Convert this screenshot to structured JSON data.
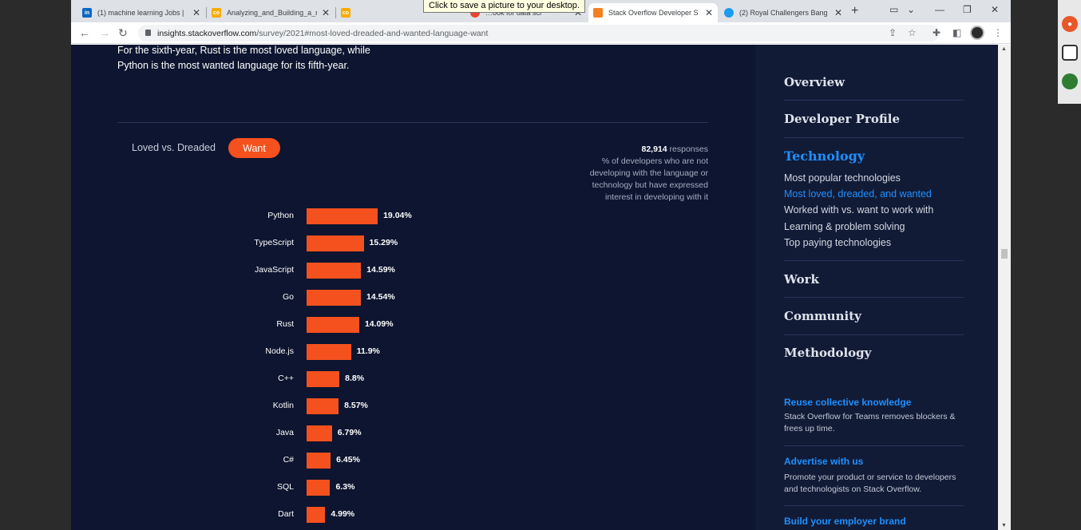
{
  "browser": {
    "tabs": [
      {
        "title": "(1) machine learning Jobs |",
        "icon": "linkedin-icon",
        "color": "#0a66c2"
      },
      {
        "title": "Analyzing_and_Building_a_r",
        "icon": "colab-icon",
        "color": "#f9ab00"
      },
      {
        "title": "",
        "icon": "colab-icon",
        "color": "#f9ab00"
      },
      {
        "title": "…ook for data sci",
        "icon": "google-icon",
        "color": "#ea4335"
      },
      {
        "title": "Stack Overflow Developer S",
        "icon": "stackoverflow-icon",
        "color": "#f48024"
      },
      {
        "title": "(2) Royal Challengers Bang",
        "icon": "twitter-icon",
        "color": "#1d9bf0"
      }
    ],
    "tooltip": "Click to save a picture to your desktop.",
    "url_host": "insights.stackoverflow.com",
    "url_path": "/survey/2021#most-loved-dreaded-and-wanted-language-want"
  },
  "intro": {
    "line1": "For the sixth-year, Rust is the most loved language, while",
    "line2": "Python is the most wanted language for its fifth-year."
  },
  "toggle": {
    "loved_label": "Loved vs. Dreaded",
    "want_label": "Want"
  },
  "note": {
    "count": "82,914",
    "count_suffix": " responses",
    "desc": "% of developers who are not developing with the language or technology but have expressed interest in developing with it"
  },
  "chart_data": {
    "type": "bar",
    "orientation": "horizontal",
    "categories": [
      "Python",
      "TypeScript",
      "JavaScript",
      "Go",
      "Rust",
      "Node.js",
      "C++",
      "Kotlin",
      "Java",
      "C#",
      "SQL",
      "Dart"
    ],
    "values": [
      19.04,
      15.29,
      14.59,
      14.54,
      14.09,
      11.9,
      8.8,
      8.57,
      6.79,
      6.45,
      6.3,
      4.99
    ],
    "value_labels": [
      "19.04%",
      "15.29%",
      "14.59%",
      "14.54%",
      "14.09%",
      "11.9%",
      "8.8%",
      "8.57%",
      "6.79%",
      "6.45%",
      "6.3%",
      "4.99%"
    ],
    "bar_color": "#f4511e"
  },
  "sidebar": {
    "sections": [
      "Overview",
      "Developer Profile",
      "Technology",
      "Work",
      "Community",
      "Methodology"
    ],
    "active_section": "Technology",
    "technology_items": [
      "Most popular technologies",
      "Most loved, dreaded, and wanted",
      "Worked with vs. want to work with",
      "Learning & problem solving",
      "Top paying technologies"
    ],
    "active_item": "Most loved, dreaded, and wanted",
    "promos": [
      {
        "title": "Reuse collective knowledge",
        "text": "Stack Overflow for Teams removes blockers & frees up time."
      },
      {
        "title": "Advertise with us",
        "text": "Promote your product or service to developers and technologists on Stack Overflow."
      },
      {
        "title": "Build your employer brand",
        "text": ""
      }
    ]
  }
}
